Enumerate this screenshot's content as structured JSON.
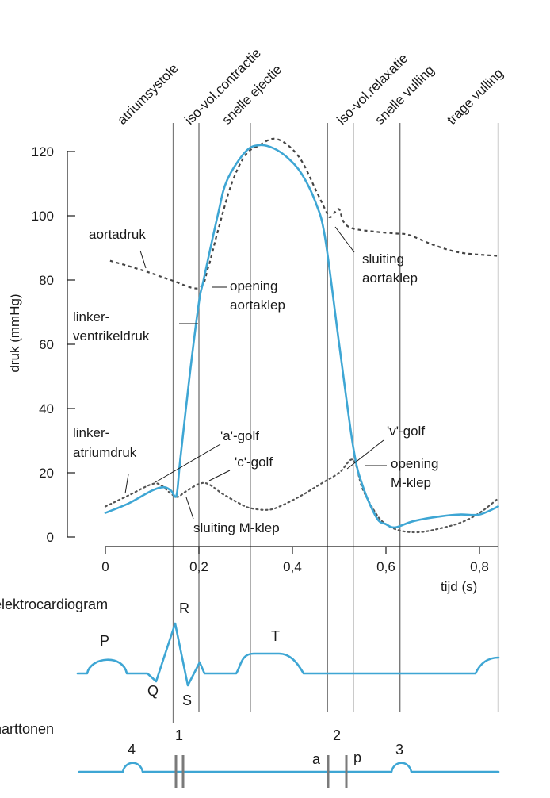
{
  "chart_data": {
    "type": "line",
    "phases": [
      {
        "label": "atriumsystole"
      },
      {
        "label": "iso-vol.contractie"
      },
      {
        "label": "snelle ejectie"
      },
      {
        "label": "iso-vol.relaxatie"
      },
      {
        "label": "snelle vulling"
      },
      {
        "label": "trage vulling"
      }
    ],
    "phase_boundaries": [
      0.145,
      0.2,
      0.31,
      0.475,
      0.53,
      0.63,
      0.84
    ],
    "xlabel": "tijd (s)",
    "ylabel": "druk (mmHg)",
    "xlim": [
      0,
      0.84
    ],
    "ylim": [
      0,
      120
    ],
    "xticks": [
      {
        "value": 0,
        "label": "0"
      },
      {
        "value": 0.2,
        "label": "0,2"
      },
      {
        "value": 0.4,
        "label": "0,4"
      },
      {
        "value": 0.6,
        "label": "0,6"
      },
      {
        "value": 0.8,
        "label": "0,8"
      }
    ],
    "yticks": [
      {
        "value": 0,
        "label": "0"
      },
      {
        "value": 20,
        "label": "20"
      },
      {
        "value": 40,
        "label": "40"
      },
      {
        "value": 60,
        "label": "60"
      },
      {
        "value": 80,
        "label": "80"
      },
      {
        "value": 100,
        "label": "100"
      },
      {
        "value": 120,
        "label": "120"
      }
    ],
    "series": [
      {
        "name": "linker-ventrikeldruk",
        "style": "solid",
        "color": "#3ea6d4",
        "points": [
          [
            0,
            7.5
          ],
          [
            0.05,
            10.5
          ],
          [
            0.1,
            14.5
          ],
          [
            0.125,
            15.5
          ],
          [
            0.14,
            14.5
          ],
          [
            0.152,
            13
          ],
          [
            0.16,
            24
          ],
          [
            0.18,
            50
          ],
          [
            0.2,
            73
          ],
          [
            0.21,
            80
          ],
          [
            0.24,
            100
          ],
          [
            0.26,
            111
          ],
          [
            0.3,
            120
          ],
          [
            0.33,
            122
          ],
          [
            0.36,
            121
          ],
          [
            0.39,
            118
          ],
          [
            0.42,
            113
          ],
          [
            0.45,
            104
          ],
          [
            0.47,
            93
          ],
          [
            0.5,
            60
          ],
          [
            0.53,
            28
          ],
          [
            0.55,
            16
          ],
          [
            0.58,
            6
          ],
          [
            0.6,
            4
          ],
          [
            0.62,
            3
          ],
          [
            0.66,
            5
          ],
          [
            0.72,
            6.5
          ],
          [
            0.76,
            7
          ],
          [
            0.8,
            7
          ],
          [
            0.84,
            9.5
          ]
        ]
      },
      {
        "name": "aortadruk",
        "style": "dashed",
        "color": "#444444",
        "points": [
          [
            0.01,
            86
          ],
          [
            0.08,
            83
          ],
          [
            0.14,
            80
          ],
          [
            0.2,
            77.5
          ],
          [
            0.22,
            84
          ],
          [
            0.24,
            95
          ],
          [
            0.27,
            110
          ],
          [
            0.3,
            119
          ],
          [
            0.33,
            122
          ],
          [
            0.36,
            124
          ],
          [
            0.39,
            122
          ],
          [
            0.42,
            117
          ],
          [
            0.45,
            108
          ],
          [
            0.47,
            102
          ],
          [
            0.48,
            99.5
          ],
          [
            0.49,
            101
          ],
          [
            0.5,
            102
          ],
          [
            0.51,
            98
          ],
          [
            0.53,
            96
          ],
          [
            0.58,
            95
          ],
          [
            0.62,
            94.5
          ],
          [
            0.65,
            94
          ],
          [
            0.7,
            91
          ],
          [
            0.76,
            88.5
          ],
          [
            0.84,
            87.5
          ]
        ]
      },
      {
        "name": "linker-atriumdruk",
        "style": "dotted",
        "color": "#555555",
        "points": [
          [
            0,
            9.5
          ],
          [
            0.05,
            13
          ],
          [
            0.1,
            16.5
          ],
          [
            0.12,
            16
          ],
          [
            0.14,
            13.5
          ],
          [
            0.155,
            12.5
          ],
          [
            0.17,
            14
          ],
          [
            0.2,
            16.5
          ],
          [
            0.22,
            16.5
          ],
          [
            0.25,
            13.5
          ],
          [
            0.28,
            11
          ],
          [
            0.31,
            9
          ],
          [
            0.35,
            8.5
          ],
          [
            0.38,
            10
          ],
          [
            0.42,
            13
          ],
          [
            0.46,
            16.5
          ],
          [
            0.5,
            20
          ],
          [
            0.53,
            24
          ],
          [
            0.55,
            15
          ],
          [
            0.58,
            7
          ],
          [
            0.6,
            4
          ],
          [
            0.63,
            2
          ],
          [
            0.67,
            1.5
          ],
          [
            0.71,
            2.5
          ],
          [
            0.76,
            4.5
          ],
          [
            0.8,
            7.5
          ],
          [
            0.84,
            12
          ]
        ]
      }
    ],
    "annotations": [
      {
        "text": "aortadruk"
      },
      {
        "text": "opening"
      },
      {
        "text": "aortaklep"
      },
      {
        "text": "sluiting"
      },
      {
        "text": "aortaklep"
      },
      {
        "text": "linker-"
      },
      {
        "text": "ventrikeldruk"
      },
      {
        "text": "linker-"
      },
      {
        "text": "atriumdruk"
      },
      {
        "text": "'a'-golf"
      },
      {
        "text": "'c'-golf"
      },
      {
        "text": "'v'-golf"
      },
      {
        "text": "opening"
      },
      {
        "text": "M-klep"
      },
      {
        "text": "sluiting M-klep"
      }
    ]
  },
  "ecg": {
    "title": "elektrocardiogram",
    "waves": [
      {
        "label": "P"
      },
      {
        "label": "Q"
      },
      {
        "label": "R"
      },
      {
        "label": "S"
      },
      {
        "label": "T"
      }
    ]
  },
  "heart_sounds": {
    "title": "harttonen",
    "labels": [
      {
        "label": "4"
      },
      {
        "label": "1"
      },
      {
        "label": "a"
      },
      {
        "label": "2"
      },
      {
        "label": "p"
      },
      {
        "label": "3"
      }
    ]
  }
}
